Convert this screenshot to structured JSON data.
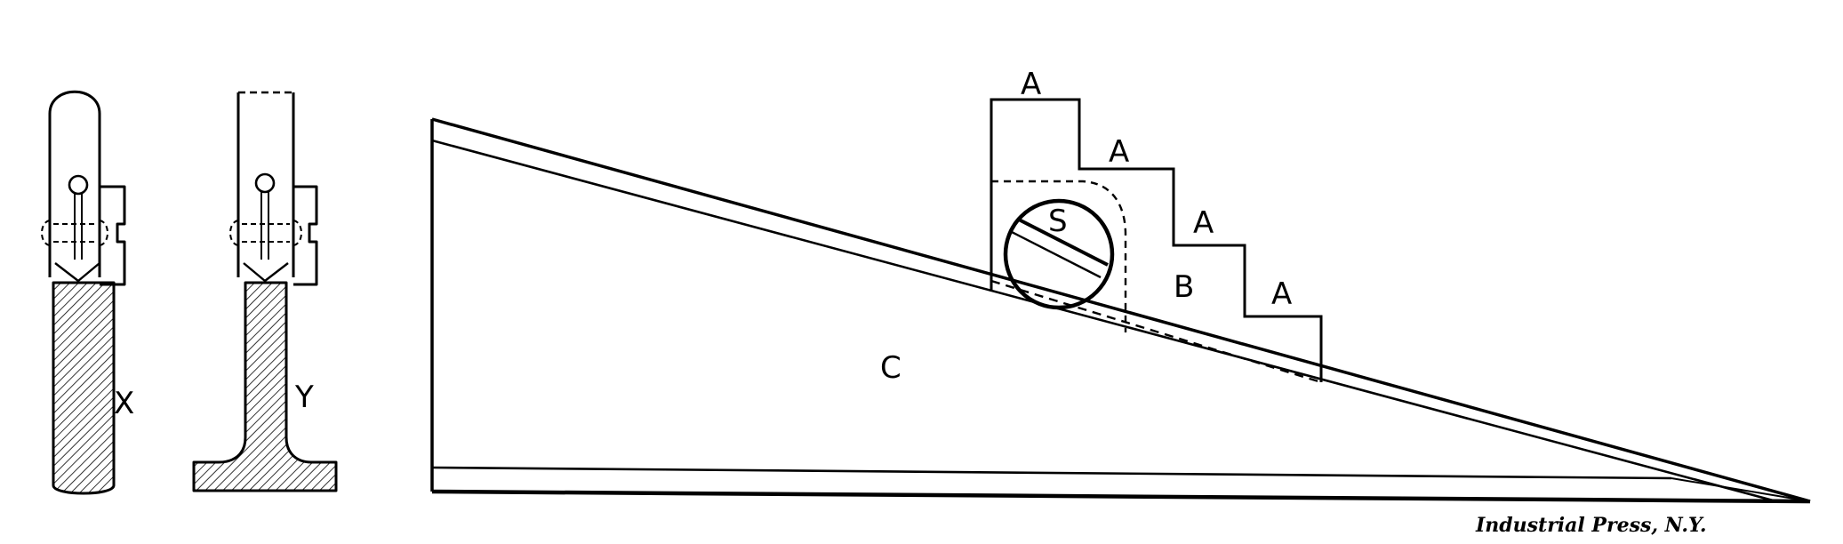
{
  "labels": {
    "x": "X",
    "y": "Y",
    "c": "C",
    "s": "S",
    "b": "B",
    "a1": "A",
    "a2": "A",
    "a3": "A",
    "a4": "A"
  },
  "credit": "Industrial Press, N.Y.",
  "colors": {
    "ink": "#000000",
    "paper": "#ffffff"
  }
}
